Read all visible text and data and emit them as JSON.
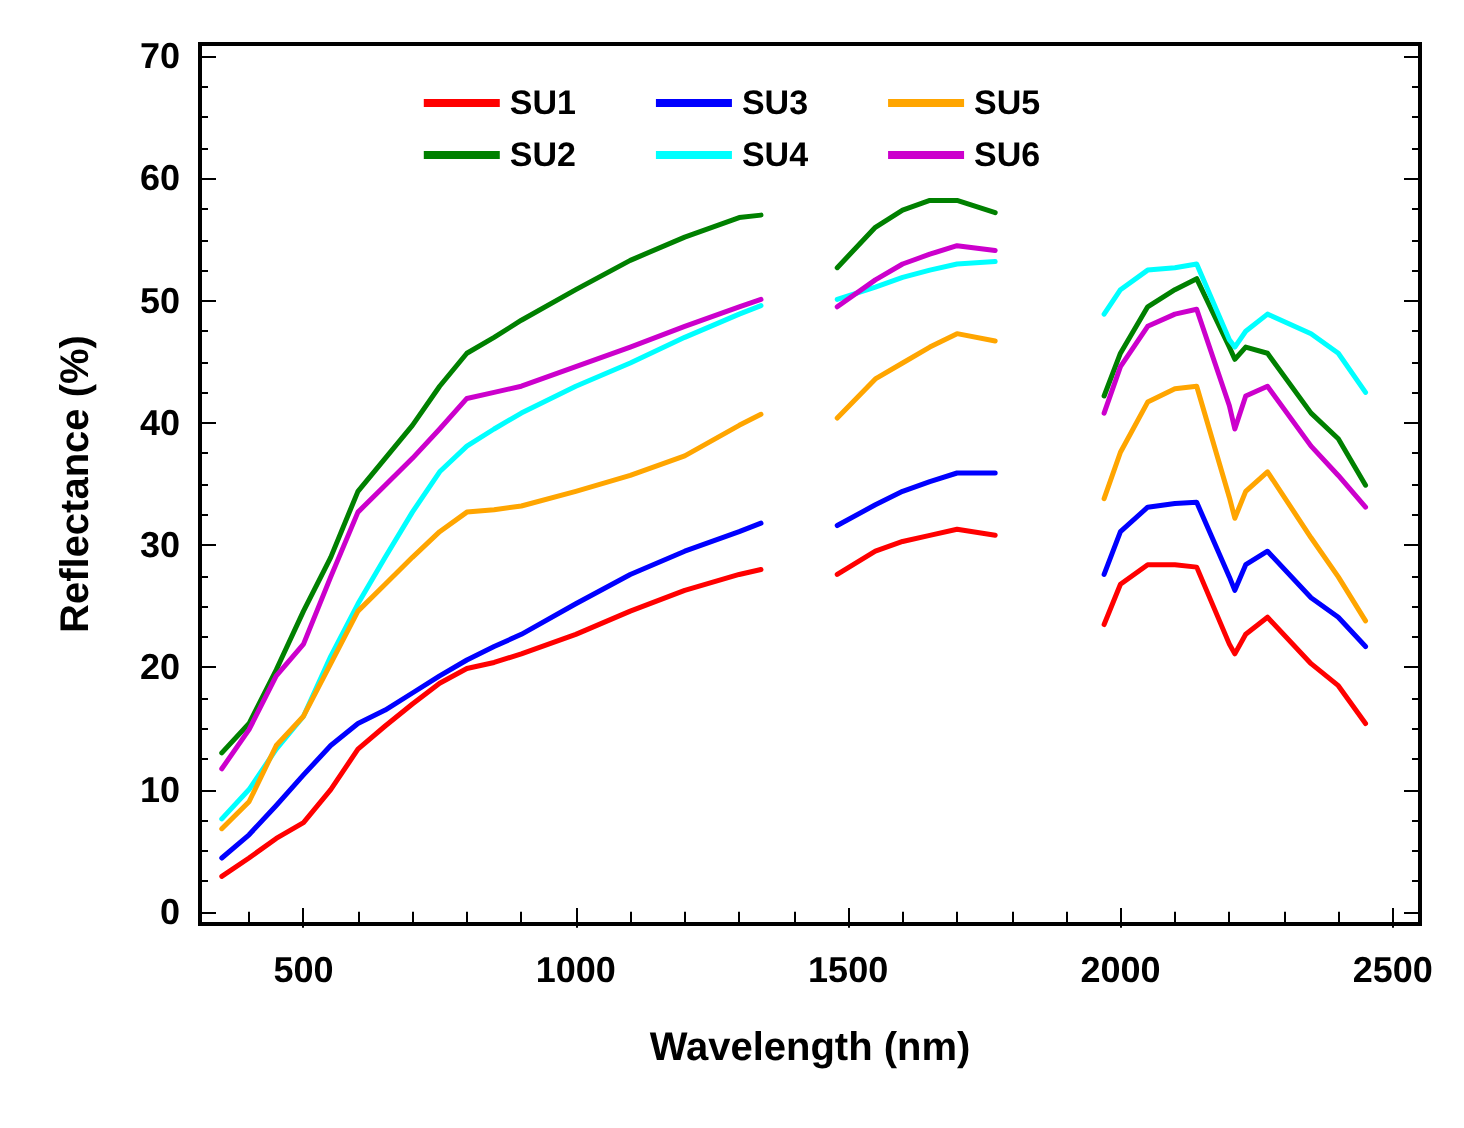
{
  "chart_data": {
    "type": "line",
    "xlabel": "Wavelength (nm)",
    "ylabel": "Reflectance (%)",
    "x": [
      350,
      400,
      450,
      500,
      550,
      600,
      650,
      700,
      750,
      800,
      850,
      900,
      1000,
      1100,
      1200,
      1300,
      1340,
      1400,
      1480,
      1550,
      1600,
      1650,
      1700,
      1770,
      1870,
      1970,
      2000,
      2050,
      2100,
      2140,
      2200,
      2210,
      2230,
      2270,
      2350,
      2400,
      2450
    ],
    "series": [
      {
        "name": "SU1",
        "color": "#ff0000",
        "values": [
          2.9,
          4.4,
          6.0,
          7.3,
          10.0,
          13.3,
          15.2,
          17.0,
          18.7,
          19.9,
          20.4,
          21.1,
          22.7,
          24.6,
          26.3,
          27.6,
          28.0,
          null,
          27.6,
          29.5,
          30.3,
          30.8,
          31.3,
          30.8,
          null,
          23.5,
          26.8,
          28.4,
          28.4,
          28.2,
          21.9,
          21.1,
          22.7,
          24.1,
          20.3,
          18.5,
          15.4
        ]
      },
      {
        "name": "SU2",
        "color": "#008000",
        "values": [
          13.0,
          15.4,
          19.8,
          24.6,
          29.0,
          34.4,
          37.1,
          39.8,
          43.0,
          45.7,
          47.0,
          48.4,
          50.9,
          53.3,
          55.2,
          56.8,
          57.0,
          null,
          52.7,
          56.0,
          57.4,
          58.2,
          58.2,
          57.2,
          null,
          42.2,
          45.7,
          49.5,
          50.9,
          51.8,
          46.2,
          45.2,
          46.2,
          45.7,
          40.8,
          38.7,
          34.9
        ]
      },
      {
        "name": "SU3",
        "color": "#0000ff",
        "values": [
          4.4,
          6.3,
          8.7,
          11.2,
          13.6,
          15.4,
          16.5,
          17.9,
          19.3,
          20.6,
          21.7,
          22.7,
          25.2,
          27.6,
          29.5,
          31.1,
          31.8,
          null,
          31.6,
          33.3,
          34.4,
          35.2,
          35.9,
          35.9,
          null,
          27.6,
          31.1,
          33.1,
          33.4,
          33.5,
          27.4,
          26.3,
          28.4,
          29.5,
          25.7,
          24.1,
          21.7
        ]
      },
      {
        "name": "SU4",
        "color": "#00ffff",
        "values": [
          7.6,
          10.0,
          13.3,
          16.0,
          20.9,
          25.2,
          29.0,
          32.7,
          36.0,
          38.1,
          39.5,
          40.8,
          43.0,
          44.9,
          47.0,
          48.9,
          49.6,
          null,
          50.1,
          51.1,
          51.9,
          52.5,
          53.0,
          53.2,
          null,
          48.9,
          50.9,
          52.5,
          52.7,
          53.0,
          46.8,
          46.2,
          47.5,
          48.9,
          47.3,
          45.7,
          42.5
        ]
      },
      {
        "name": "SU5",
        "color": "#ffa500",
        "values": [
          6.8,
          9.0,
          13.6,
          16.0,
          20.3,
          24.6,
          26.8,
          29.0,
          31.1,
          32.7,
          32.9,
          33.2,
          34.4,
          35.7,
          37.3,
          39.8,
          40.7,
          null,
          40.4,
          43.6,
          44.9,
          46.2,
          47.3,
          46.7,
          null,
          33.8,
          37.6,
          41.7,
          42.8,
          43.0,
          33.9,
          32.2,
          34.4,
          36.0,
          30.6,
          27.4,
          23.8
        ]
      },
      {
        "name": "SU6",
        "color": "#cc00cc",
        "values": [
          11.7,
          14.9,
          19.3,
          21.9,
          27.4,
          32.7,
          34.9,
          37.1,
          39.5,
          42.0,
          42.5,
          43.0,
          44.6,
          46.2,
          47.9,
          49.5,
          50.1,
          null,
          49.5,
          51.7,
          53.0,
          53.8,
          54.5,
          54.1,
          null,
          40.8,
          44.6,
          47.9,
          48.9,
          49.3,
          41.4,
          39.5,
          42.2,
          43.0,
          38.1,
          35.7,
          33.1
        ]
      }
    ],
    "xlim": [
      310,
      2550
    ],
    "xticks": [
      500,
      1000,
      1500,
      2000,
      2500
    ],
    "ylim": [
      -1,
      71
    ],
    "yticks": [
      0,
      10,
      20,
      30,
      40,
      50,
      60,
      70
    ],
    "legend": "top",
    "grid": false,
    "marker": "none",
    "line_style": "solid"
  }
}
